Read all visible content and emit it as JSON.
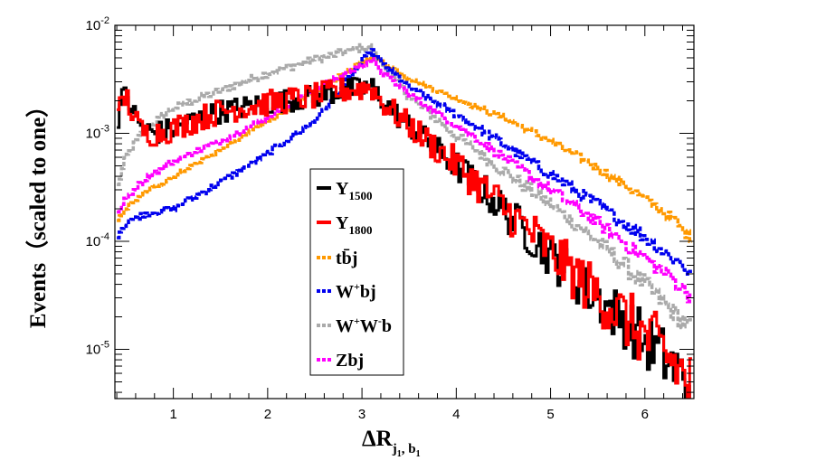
{
  "chart_data": {
    "type": "line",
    "title": "",
    "xlabel": "ΔR",
    "xlabel_sub": "j",
    "xlabel_sub_sub": "1",
    "xlabel_sub2": ", b",
    "xlabel_sub2_sub": "1",
    "ylabel": "Events（scaled to one）",
    "xlim": [
      0.38,
      6.52
    ],
    "ylim": [
      3.5e-06,
      0.01
    ],
    "yscale": "log",
    "x_ticks": [
      {
        "value": 1,
        "label": "1"
      },
      {
        "value": 2,
        "label": "2"
      },
      {
        "value": 3,
        "label": "3"
      },
      {
        "value": 4,
        "label": "4"
      },
      {
        "value": 5,
        "label": "5"
      },
      {
        "value": 6,
        "label": "6"
      }
    ],
    "y_ticks": [
      {
        "value": 0.01,
        "base": "10",
        "exp": "-2"
      },
      {
        "value": 0.001,
        "base": "10",
        "exp": "-3"
      },
      {
        "value": 0.0001,
        "base": "10",
        "exp": "-4"
      },
      {
        "value": 1e-05,
        "base": "10",
        "exp": "-5"
      }
    ],
    "legend_position": "center",
    "series": [
      {
        "name": "Y",
        "name_sub": "1500",
        "color": "#000000",
        "style": "solid",
        "x": [
          0.4,
          0.45,
          0.5,
          0.55,
          0.6,
          0.65,
          0.7,
          0.8,
          1.0,
          1.2,
          1.5,
          2.0,
          2.5,
          2.8,
          3.0,
          3.1,
          3.2,
          3.4,
          3.6,
          3.8,
          4.0,
          4.2,
          4.4,
          4.6,
          4.8,
          5.0,
          5.2,
          5.4,
          5.6,
          5.8,
          6.0,
          6.2,
          6.4,
          6.5
        ],
        "y": [
          0.0013,
          0.002,
          0.0023,
          0.0018,
          0.0014,
          0.0012,
          0.0011,
          0.001,
          0.0011,
          0.0013,
          0.0016,
          0.0019,
          0.0022,
          0.0025,
          0.0026,
          0.0027,
          0.0021,
          0.0014,
          0.001,
          0.0007,
          0.0005,
          0.00035,
          0.00024,
          0.00016,
          0.00011,
          7.5e-05,
          5e-05,
          3.5e-05,
          2.5e-05,
          1.8e-05,
          1.2e-05,
          8.5e-06,
          5.5e-06,
          4.5e-06
        ],
        "noise": 0.25
      },
      {
        "name": "Y",
        "name_sub": "1800",
        "color": "#ff0000",
        "style": "solid",
        "x": [
          0.4,
          0.45,
          0.5,
          0.55,
          0.6,
          0.65,
          0.7,
          0.8,
          1.0,
          1.2,
          1.5,
          2.0,
          2.5,
          2.8,
          3.0,
          3.1,
          3.2,
          3.4,
          3.6,
          3.8,
          4.0,
          4.2,
          4.4,
          4.6,
          4.8,
          5.0,
          5.2,
          5.4,
          5.6,
          5.8,
          6.0,
          6.2,
          6.4,
          6.5
        ],
        "y": [
          0.0012,
          0.0019,
          0.0022,
          0.0017,
          0.0013,
          0.0011,
          0.001,
          0.001,
          0.0011,
          0.0013,
          0.0016,
          0.0019,
          0.0022,
          0.0025,
          0.0026,
          0.0027,
          0.002,
          0.0014,
          0.001,
          0.00072,
          0.00052,
          0.00036,
          0.00025,
          0.00017,
          0.00012,
          8e-05,
          5.5e-05,
          3.8e-05,
          2.7e-05,
          1.9e-05,
          1.3e-05,
          9.5e-06,
          6e-06,
          4.5e-06
        ],
        "noise": 0.28
      },
      {
        "name": "t b̄ j",
        "name_sub": "",
        "color": "#ff9900",
        "style": "dashed",
        "x": [
          0.4,
          0.5,
          0.7,
          1.0,
          1.5,
          2.0,
          2.5,
          3.0,
          3.1,
          3.2,
          3.5,
          4.0,
          4.5,
          5.0,
          5.5,
          6.0,
          6.3,
          6.5
        ],
        "y": [
          0.00015,
          0.0002,
          0.00028,
          0.0004,
          0.0007,
          0.0013,
          0.0024,
          0.0045,
          0.0052,
          0.0047,
          0.0032,
          0.0021,
          0.0014,
          0.00085,
          0.00048,
          0.00025,
          0.00016,
          0.000105
        ],
        "noise": 0.04
      },
      {
        "name": "W+bj",
        "name_sub": "",
        "color": "#0000ee",
        "style": "dashed",
        "x": [
          0.4,
          0.5,
          0.7,
          1.0,
          1.5,
          2.0,
          2.5,
          3.0,
          3.1,
          3.2,
          3.5,
          4.0,
          4.5,
          5.0,
          5.5,
          6.0,
          6.3,
          6.5
        ],
        "y": [
          0.00011,
          0.00015,
          0.00018,
          0.0002,
          0.00035,
          0.00065,
          0.0013,
          0.0045,
          0.0058,
          0.0046,
          0.0027,
          0.0015,
          0.0008,
          0.00042,
          0.00022,
          0.00011,
          7e-05,
          5e-05
        ],
        "noise": 0.06
      },
      {
        "name": "W+W-b",
        "name_sub": "",
        "color": "#aaaaaa",
        "style": "dashed",
        "x": [
          0.4,
          0.5,
          0.7,
          1.0,
          1.5,
          2.0,
          2.5,
          3.0,
          3.1,
          3.2,
          3.5,
          4.0,
          4.5,
          5.0,
          5.5,
          6.0,
          6.3,
          6.5
        ],
        "y": [
          0.0003,
          0.0006,
          0.0011,
          0.0017,
          0.0025,
          0.0036,
          0.0048,
          0.0062,
          0.0063,
          0.0045,
          0.0022,
          0.00095,
          0.00045,
          0.00022,
          0.0001,
          4e-05,
          2.2e-05,
          1.5e-05
        ],
        "noise": 0.08
      },
      {
        "name": "Zbj",
        "name_sub": "",
        "color": "#ff00ff",
        "style": "dashed",
        "x": [
          0.4,
          0.5,
          0.7,
          1.0,
          1.5,
          2.0,
          2.5,
          3.0,
          3.1,
          3.2,
          3.5,
          4.0,
          4.5,
          5.0,
          5.5,
          6.0,
          6.3,
          6.5
        ],
        "y": [
          0.00017,
          0.00025,
          0.00038,
          0.00055,
          0.00085,
          0.0014,
          0.0025,
          0.0043,
          0.0048,
          0.0038,
          0.0023,
          0.0012,
          0.0006,
          0.0003,
          0.00015,
          7e-05,
          4.5e-05,
          3e-05
        ],
        "noise": 0.06
      }
    ]
  },
  "legend": {
    "items": [
      {
        "main": "Y",
        "sub": "1500",
        "sup": "",
        "color": "#000000",
        "dashed": false
      },
      {
        "main": "Y",
        "sub": "1800",
        "sup": "",
        "color": "#ff0000",
        "dashed": false
      },
      {
        "main": "tb̄j",
        "sub": "",
        "sup": "",
        "color": "#ff9900",
        "dashed": true
      },
      {
        "main": "W",
        "sup": "+",
        "rest": "bj",
        "color": "#0000ee",
        "dashed": true
      },
      {
        "main": "W",
        "sup": "+",
        "rest": "W",
        "sup2": "-",
        "rest2": "b",
        "color": "#aaaaaa",
        "dashed": true
      },
      {
        "main": "Zbj",
        "sub": "",
        "sup": "",
        "color": "#ff00ff",
        "dashed": true
      }
    ]
  }
}
